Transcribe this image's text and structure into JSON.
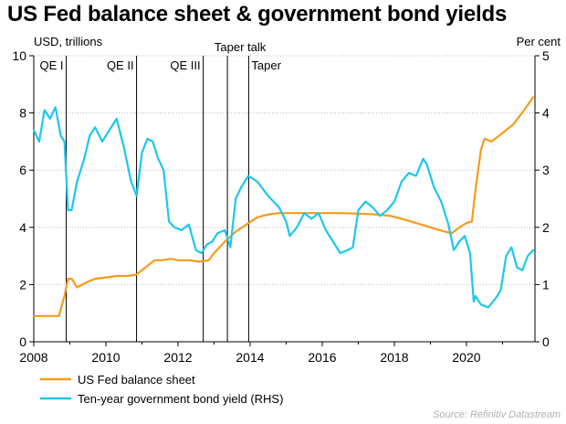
{
  "chart_data": {
    "type": "line",
    "title": "US Fed balance sheet & government bond yields",
    "left_axis_unit": "USD, trillions",
    "right_axis_unit": "Per cent",
    "x_ticks": [
      "2008",
      "2010",
      "2012",
      "2014",
      "2016",
      "2018",
      "2020"
    ],
    "y_left_ticks": [
      "0",
      "2",
      "4",
      "6",
      "8",
      "10"
    ],
    "y_right_ticks": [
      "0",
      "1",
      "2",
      "3",
      "4",
      "5"
    ],
    "xlim": [
      2008,
      2021.9
    ],
    "ylim_left": [
      0,
      10
    ],
    "ylim_right": [
      0,
      5
    ],
    "grid": "horizontal dotted",
    "legend_position": "bottom-left",
    "annotations": [
      {
        "label": "QE I",
        "x": 2008.9,
        "text_side": "left"
      },
      {
        "label": "QE II",
        "x": 2010.85,
        "text_side": "left"
      },
      {
        "label": "QE III",
        "x": 2012.7,
        "text_side": "left"
      },
      {
        "label": "Taper talk",
        "x": 2013.37,
        "text_side": "top"
      },
      {
        "label": "Taper",
        "x": 2013.96,
        "text_side": "right"
      }
    ],
    "series": [
      {
        "name": "US Fed balance sheet",
        "axis": "left",
        "color": "#F59B1B",
        "x": [
          2008.0,
          2008.7,
          2008.85,
          2008.95,
          2009.05,
          2009.2,
          2009.35,
          2009.5,
          2009.7,
          2010.0,
          2010.3,
          2010.6,
          2010.85,
          2011.1,
          2011.35,
          2011.55,
          2011.8,
          2012.0,
          2012.3,
          2012.6,
          2012.85,
          2013.0,
          2013.3,
          2013.6,
          2013.9,
          2014.2,
          2014.5,
          2014.8,
          2015.2,
          2015.6,
          2016.0,
          2016.5,
          2017.0,
          2017.5,
          2017.9,
          2018.2,
          2018.6,
          2019.0,
          2019.4,
          2019.6,
          2019.8,
          2020.0,
          2020.15,
          2020.25,
          2020.4,
          2020.5,
          2020.7,
          2021.0,
          2021.3,
          2021.6,
          2021.85
        ],
        "values": [
          0.9,
          0.9,
          1.6,
          2.2,
          2.2,
          1.9,
          2.0,
          2.1,
          2.2,
          2.25,
          2.3,
          2.3,
          2.35,
          2.6,
          2.85,
          2.85,
          2.9,
          2.85,
          2.85,
          2.8,
          2.85,
          3.1,
          3.5,
          3.85,
          4.1,
          4.35,
          4.45,
          4.5,
          4.5,
          4.5,
          4.5,
          4.5,
          4.48,
          4.45,
          4.4,
          4.3,
          4.15,
          4.0,
          3.85,
          3.8,
          4.0,
          4.15,
          4.2,
          5.3,
          6.7,
          7.1,
          7.0,
          7.3,
          7.6,
          8.1,
          8.55
        ]
      },
      {
        "name": "Ten-year government bond yield (RHS)",
        "axis": "right",
        "color": "#1CC7EF",
        "x": [
          2008.0,
          2008.15,
          2008.3,
          2008.45,
          2008.6,
          2008.75,
          2008.85,
          2008.95,
          2009.05,
          2009.2,
          2009.4,
          2009.55,
          2009.7,
          2009.9,
          2010.1,
          2010.3,
          2010.5,
          2010.7,
          2010.85,
          2011.0,
          2011.15,
          2011.3,
          2011.45,
          2011.6,
          2011.75,
          2011.9,
          2012.1,
          2012.3,
          2012.5,
          2012.65,
          2012.8,
          2012.95,
          2013.1,
          2013.3,
          2013.45,
          2013.6,
          2013.75,
          2013.95,
          2014.2,
          2014.5,
          2014.8,
          2015.0,
          2015.1,
          2015.3,
          2015.5,
          2015.7,
          2015.9,
          2016.1,
          2016.3,
          2016.5,
          2016.7,
          2016.85,
          2017.0,
          2017.2,
          2017.4,
          2017.6,
          2017.8,
          2018.0,
          2018.2,
          2018.4,
          2018.6,
          2018.8,
          2018.9,
          2019.1,
          2019.3,
          2019.5,
          2019.65,
          2019.8,
          2019.95,
          2020.1,
          2020.2,
          2020.25,
          2020.4,
          2020.6,
          2020.8,
          2020.95,
          2021.1,
          2021.25,
          2021.4,
          2021.55,
          2021.7,
          2021.85
        ],
        "values": [
          3.7,
          3.5,
          4.05,
          3.9,
          4.1,
          3.6,
          3.5,
          2.3,
          2.3,
          2.8,
          3.2,
          3.6,
          3.75,
          3.5,
          3.7,
          3.9,
          3.4,
          2.8,
          2.55,
          3.3,
          3.55,
          3.5,
          3.2,
          3.0,
          2.1,
          2.0,
          1.95,
          2.05,
          1.6,
          1.55,
          1.7,
          1.75,
          1.9,
          1.95,
          1.65,
          2.5,
          2.7,
          2.9,
          2.8,
          2.55,
          2.35,
          2.1,
          1.85,
          2.0,
          2.25,
          2.15,
          2.25,
          1.95,
          1.75,
          1.55,
          1.6,
          1.65,
          2.3,
          2.45,
          2.35,
          2.2,
          2.3,
          2.45,
          2.8,
          2.95,
          2.9,
          3.2,
          3.1,
          2.7,
          2.45,
          2.05,
          1.6,
          1.75,
          1.85,
          1.55,
          0.7,
          0.8,
          0.65,
          0.6,
          0.75,
          0.9,
          1.5,
          1.65,
          1.3,
          1.25,
          1.5,
          1.6
        ]
      }
    ]
  },
  "legend": {
    "items": [
      "US Fed balance sheet",
      "Ten-year government bond yield (RHS)"
    ]
  },
  "source": "Source: Refinitiv Datastream"
}
